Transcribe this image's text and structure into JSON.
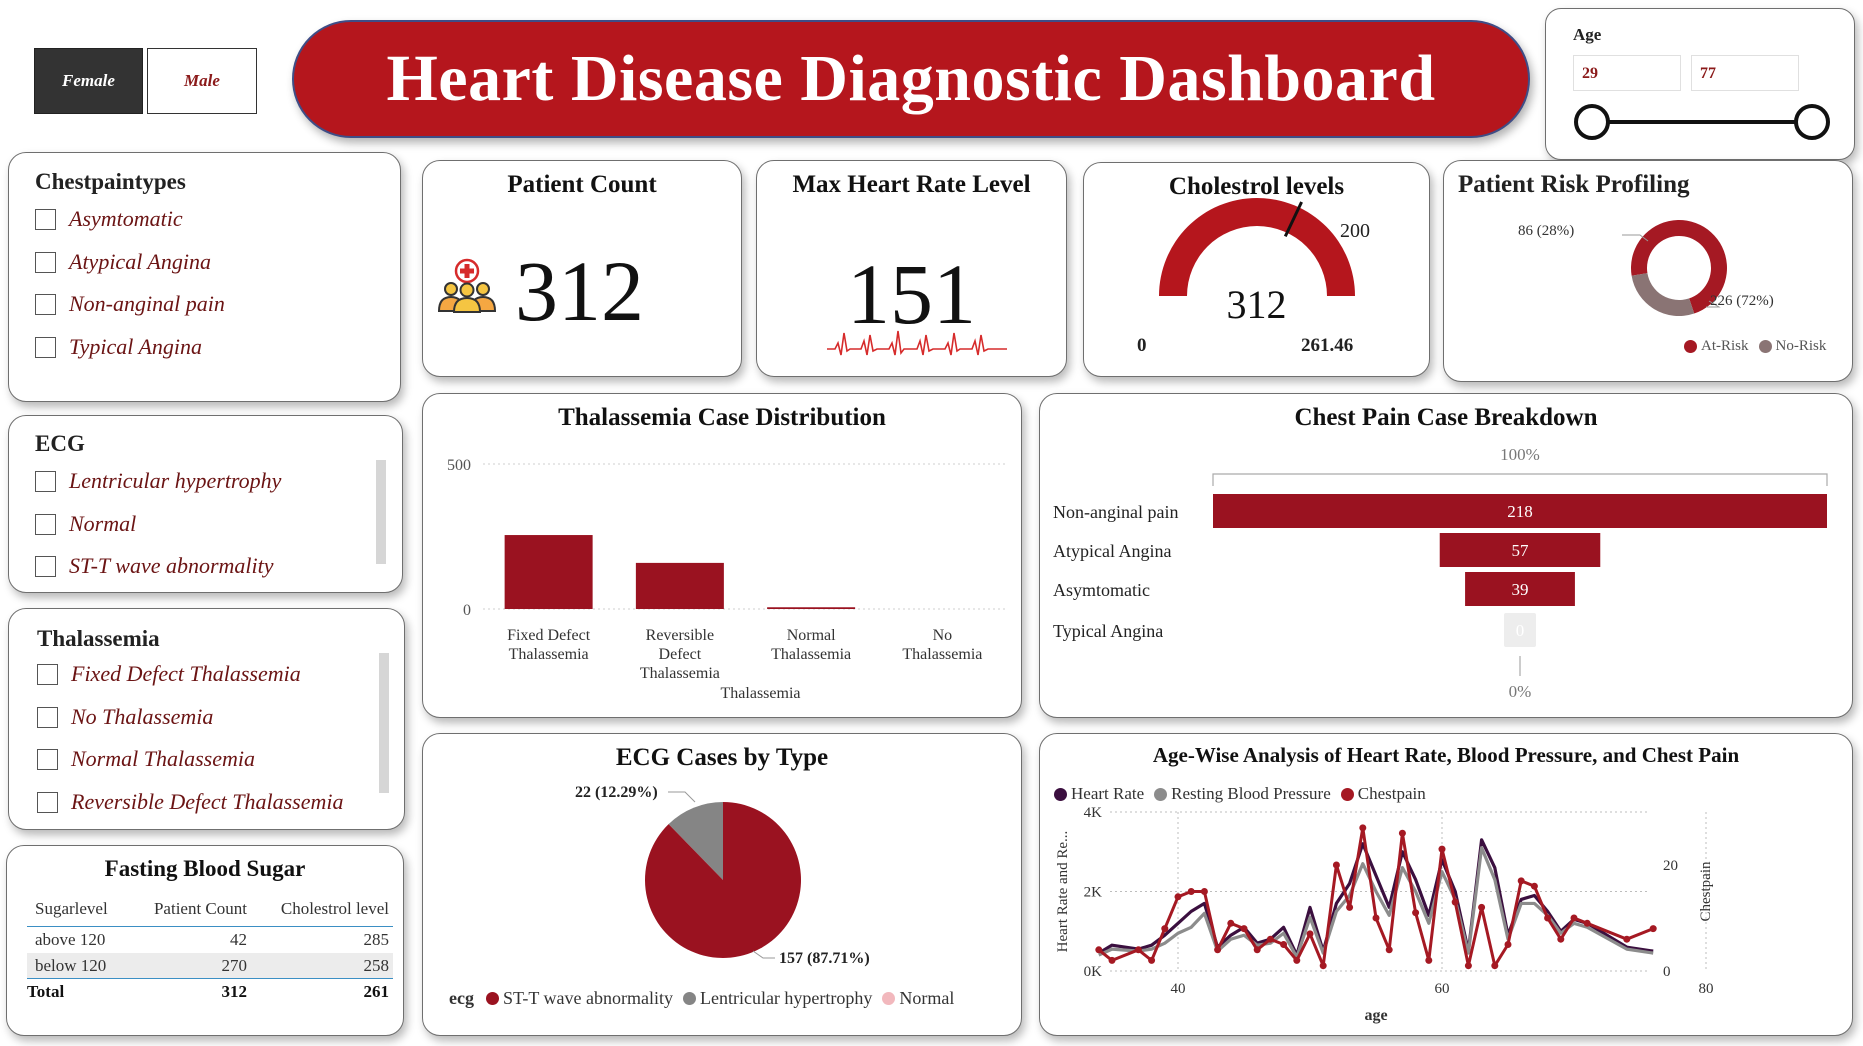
{
  "header": {
    "title": "Heart Disease Diagnostic Dashboard"
  },
  "gender_toggle": {
    "female_label": "Female",
    "male_label": "Male",
    "selected": "Female"
  },
  "age_slicer": {
    "title": "Age",
    "min_value": "29",
    "max_value": "77"
  },
  "chestpain_slicer": {
    "title": "Chestpaintypes",
    "items": [
      "Asymtomatic",
      "Atypical Angina",
      "Non-anginal pain",
      "Typical Angina"
    ]
  },
  "ecg_slicer": {
    "title": "ECG",
    "items": [
      "Lentricular hypertrophy",
      "Normal",
      "ST-T wave abnormality"
    ]
  },
  "thal_slicer": {
    "title": "Thalassemia",
    "items": [
      "Fixed Defect Thalassemia",
      "No Thalassemia",
      "Normal Thalassemia",
      "Reversible Defect Thalassemia"
    ]
  },
  "fbs_table": {
    "title": "Fasting Blood Sugar",
    "columns": [
      "Sugarlevel",
      "Patient Count",
      "Cholestrol level"
    ],
    "rows": [
      [
        "above 120",
        "42",
        "285"
      ],
      [
        "below 120",
        "270",
        "258"
      ]
    ],
    "total": [
      "Total",
      "312",
      "261"
    ]
  },
  "kpi_patient_count": {
    "title": "Patient Count",
    "value": "312",
    "icon": "patients-icon"
  },
  "kpi_max_heart_rate": {
    "title": "Max Heart Rate Level",
    "value": "151",
    "icon": "heartbeat-line-icon"
  },
  "gauge_cholestrol": {
    "title": "Cholestrol levels",
    "value": "312",
    "min": "0",
    "max": "261.46",
    "target": "200",
    "value_num": 312,
    "max_num": 261.46,
    "target_num": 200
  },
  "risk_donut": {
    "title": "Patient Risk Profiling",
    "slices": [
      {
        "name": "At-Risk",
        "value": 226,
        "label": "226 (72%)",
        "color": "#a51923"
      },
      {
        "name": "No-Risk",
        "value": 86,
        "label": "86 (28%)",
        "color": "#8a7474"
      }
    ],
    "legend": [
      "At-Risk",
      "No-Risk"
    ]
  },
  "chart_data": [
    {
      "type": "bar",
      "title": "Thalassemia Case Distribution",
      "xlabel": "Thalassemia",
      "ylabel": "",
      "categories": [
        "Fixed Defect Thalassemia",
        "Reversible Defect Thalassemia",
        "Normal Thalassemia",
        "No Thalassemia"
      ],
      "category_lines": [
        [
          "Fixed Defect",
          "Thalassemia"
        ],
        [
          "Reversible",
          "Defect",
          "Thalassemia"
        ],
        [
          "Normal",
          "Thalassemia"
        ],
        [
          "No",
          "Thalassemia"
        ]
      ],
      "values": [
        255,
        159,
        6,
        0
      ],
      "yticks": [
        "0",
        "500"
      ],
      "ylim": [
        0,
        500
      ],
      "color": "#9a1220",
      "grid": true
    },
    {
      "type": "bar",
      "title": "Chest Pain Case Breakdown",
      "categories": [
        "Non-anginal pain",
        "Atypical Angina",
        "Asymtomatic",
        "Typical Angina"
      ],
      "values": [
        218,
        57,
        39,
        0
      ],
      "data_labels": [
        "218",
        "57",
        "39",
        "0"
      ],
      "top_label": "100%",
      "bottom_label": "0%",
      "color": "#9a1220"
    },
    {
      "type": "pie",
      "title": "ECG Cases by Type",
      "legend_title": "ecg",
      "slices": [
        {
          "name": "ST-T wave abnormality",
          "value": 157,
          "label": "157 (87.71%)",
          "color": "#9a1220"
        },
        {
          "name": "Lentricular hypertrophy",
          "value": 22,
          "label": "22 (12.29%)",
          "color": "#858585"
        },
        {
          "name": "Normal",
          "value": 0,
          "label": "",
          "color": "#f2b8bd"
        }
      ]
    },
    {
      "type": "line",
      "title": "Age-Wise Analysis of Heart Rate, Blood Pressure, and Chest Pain",
      "xlabel": "age",
      "ylabel": "Heart Rate and Re...",
      "y2label": "Chestpain",
      "xlim": [
        30,
        80
      ],
      "xticks": [
        "40",
        "60",
        "80"
      ],
      "ylim": [
        0,
        4000
      ],
      "yticks": [
        "0K",
        "2K",
        "4K"
      ],
      "y2lim": [
        0,
        30
      ],
      "y2ticks": [
        "0",
        "20"
      ],
      "grid": true,
      "legend": "top-left",
      "x": [
        34,
        35,
        37,
        38,
        39,
        40,
        41,
        42,
        43,
        44,
        45,
        46,
        47,
        48,
        49,
        50,
        51,
        52,
        53,
        54,
        55,
        56,
        57,
        58,
        59,
        60,
        61,
        62,
        63,
        64,
        65,
        66,
        67,
        68,
        69,
        70,
        71,
        74,
        76
      ],
      "series": [
        {
          "name": "Heart Rate",
          "axis": "left",
          "color": "#3b0f3f",
          "values": [
            450,
            650,
            550,
            650,
            900,
            1200,
            1500,
            1700,
            600,
            900,
            1100,
            700,
            800,
            1100,
            400,
            1600,
            500,
            1700,
            2200,
            3200,
            2400,
            1600,
            3000,
            2300,
            1400,
            2800,
            2000,
            500,
            3300,
            2600,
            900,
            1800,
            1900,
            1500,
            1000,
            1300,
            1200,
            600,
            500
          ]
        },
        {
          "name": "Resting Blood Pressure",
          "axis": "left",
          "color": "#8c8c8c",
          "values": [
            400,
            550,
            500,
            550,
            700,
            950,
            1100,
            1450,
            500,
            800,
            900,
            650,
            700,
            950,
            350,
            1350,
            450,
            1500,
            1900,
            2700,
            2000,
            1400,
            2600,
            2000,
            1200,
            2500,
            1800,
            450,
            3100,
            2300,
            800,
            1700,
            1700,
            1400,
            950,
            1200,
            1100,
            550,
            450
          ]
        },
        {
          "name": "Chestpain",
          "axis": "right",
          "color": "#a51923",
          "values": [
            4,
            2,
            4,
            2,
            8,
            14,
            15,
            15,
            4,
            9,
            8,
            4,
            6,
            5,
            2,
            7,
            1,
            20,
            12,
            27,
            10,
            4,
            26,
            11,
            2,
            23,
            13,
            1,
            12,
            1,
            5,
            17,
            16,
            10,
            6,
            10,
            9,
            6,
            8
          ]
        }
      ]
    }
  ]
}
